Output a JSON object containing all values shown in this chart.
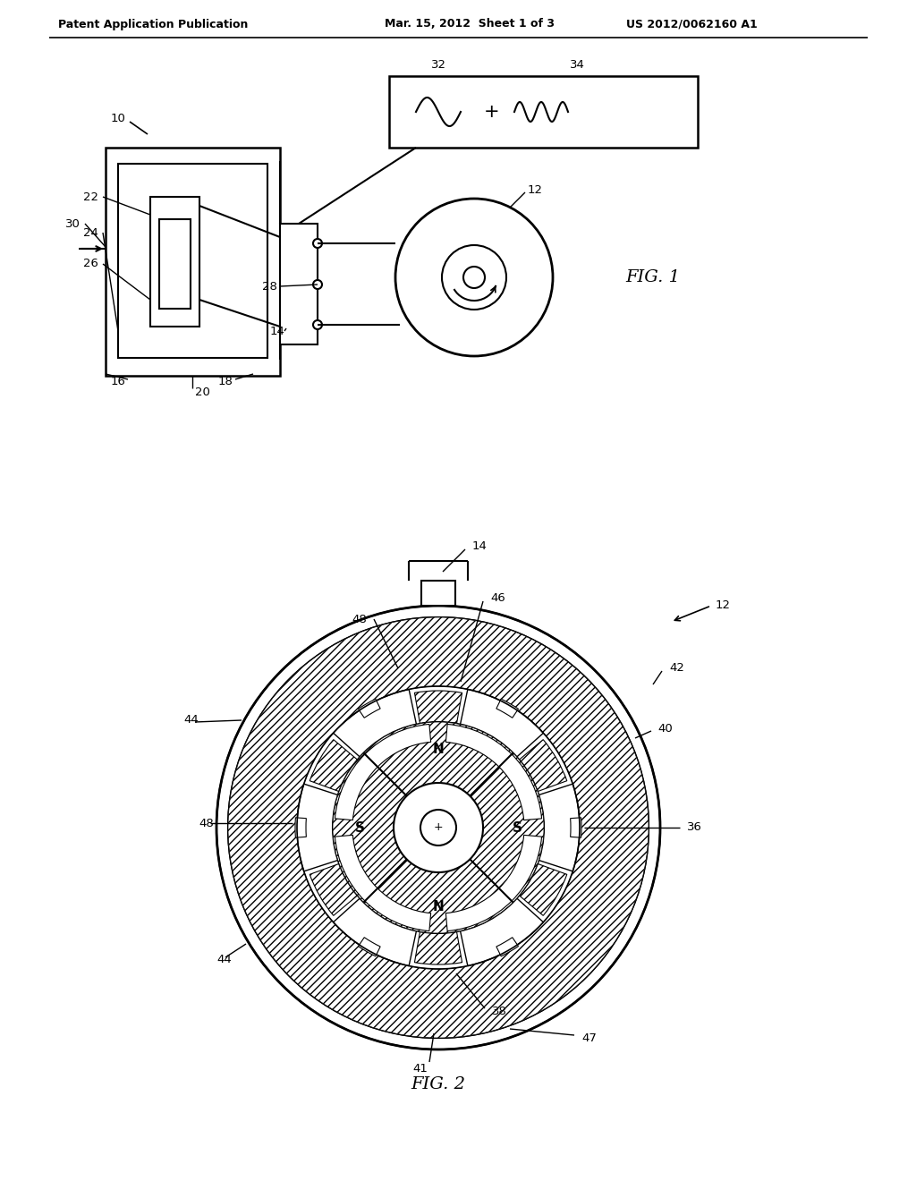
{
  "bg_color": "#ffffff",
  "header_left": "Patent Application Publication",
  "header_mid": "Mar. 15, 2012  Sheet 1 of 3",
  "header_right": "US 2012/0062160 A1",
  "fig1_label": "FIG. 1",
  "fig2_label": "FIG. 2",
  "line_color": "#000000"
}
